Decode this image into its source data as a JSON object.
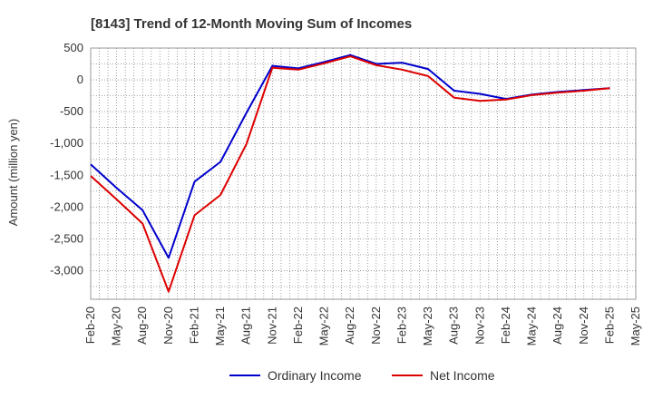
{
  "chart_data": {
    "type": "line",
    "title": "[8143]  Trend of 12-Month Moving Sum of Incomes",
    "xlabel": "",
    "ylabel": "Amount (million yen)",
    "ylim": [
      -3450,
      500
    ],
    "y_ticks": [
      500,
      0,
      -500,
      -1000,
      -1500,
      -2000,
      -2500,
      -3000
    ],
    "y_tick_labels": [
      "500",
      "0",
      "-500",
      "-1,000",
      "-1,500",
      "-2,000",
      "-2,500",
      "-3,000"
    ],
    "categories": [
      "Feb-20",
      "May-20",
      "Aug-20",
      "Nov-20",
      "Feb-21",
      "May-21",
      "Aug-21",
      "Nov-21",
      "Feb-22",
      "May-22",
      "Aug-22",
      "Nov-22",
      "Feb-23",
      "May-23",
      "Aug-23",
      "Nov-23",
      "Feb-24",
      "May-24",
      "Aug-24",
      "Nov-24",
      "Feb-25",
      "May-25"
    ],
    "grid": true,
    "legend_position": "bottom",
    "series": [
      {
        "name": "Ordinary Income",
        "color": "#0000cc",
        "values": [
          -1330,
          -1700,
          -2050,
          -2800,
          -1600,
          -1290,
          -520,
          220,
          180,
          280,
          390,
          250,
          270,
          170,
          -170,
          -220,
          -300,
          -230,
          -190,
          -160,
          -130,
          null
        ]
      },
      {
        "name": "Net Income",
        "color": "#dd0000",
        "values": [
          -1510,
          -1880,
          -2260,
          -3330,
          -2130,
          -1810,
          -1010,
          190,
          160,
          260,
          370,
          230,
          160,
          60,
          -280,
          -330,
          -310,
          -240,
          -200,
          -170,
          -130,
          null
        ]
      }
    ]
  }
}
